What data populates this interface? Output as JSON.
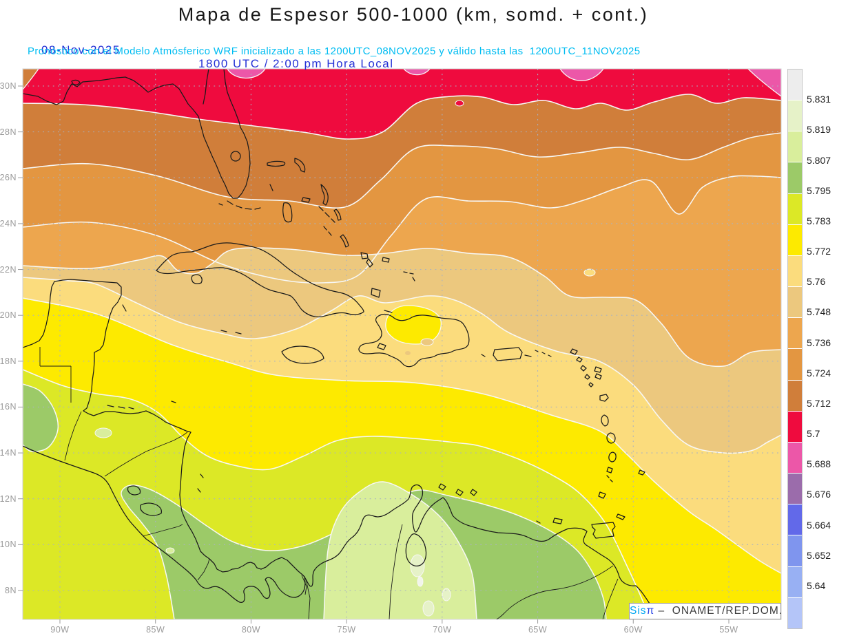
{
  "header": {
    "title": "Mapa de Espesor 500-1000 (km, somd. + cont.)",
    "date": "08-Nov-2025",
    "time": "1800 UTC / 2:00 pm Hora Local",
    "forecast": "Pronóstico con el Modelo Atmósferico WRF inicializado a las 1200UTC_08NOV2025 y válido hasta las  1200UTC_11NOV2025"
  },
  "axes": {
    "lat": [
      "30N",
      "28N",
      "26N",
      "24N",
      "22N",
      "20N",
      "18N",
      "16N",
      "14N",
      "12N",
      "10N",
      "8N"
    ],
    "lon": [
      "90W",
      "85W",
      "80W",
      "75W",
      "70W",
      "65W",
      "60W",
      "55W"
    ]
  },
  "colorbar": {
    "values": [
      "5.831",
      "5.819",
      "5.807",
      "5.795",
      "5.783",
      "5.772",
      "5.76",
      "5.748",
      "5.736",
      "5.724",
      "5.712",
      "5.7",
      "5.688",
      "5.676",
      "5.664",
      "5.652",
      "5.64"
    ],
    "colors": [
      "#ededed",
      "#e6f2c8",
      "#d9ee9c",
      "#9cca68",
      "#dce826",
      "#fdea00",
      "#fbdc7d",
      "#ecc87e",
      "#eda64e",
      "#e39641",
      "#d07e3a",
      "#ef0b3e",
      "#ec57a8",
      "#9b6cab",
      "#6269e9",
      "#7f95ee",
      "#98b0f3",
      "#b4c5f8"
    ]
  },
  "watermark": {
    "brand": "Sis",
    "pi": "π",
    "suffix": " –  ONAMET/REP.DOM."
  },
  "chart_data": {
    "type": "heatmap",
    "subtype": "filled-contour weather map (500-1000 hPa thickness)",
    "title": "Mapa de Espesor 500-1000 (km, somd. + cont.)",
    "region": {
      "lat_range": [
        "8N",
        "30N"
      ],
      "lon_range": [
        "90W",
        "55W"
      ]
    },
    "variable": "Espesor 500-1000 (km)",
    "contour_levels": [
      5.64,
      5.652,
      5.664,
      5.676,
      5.688,
      5.7,
      5.712,
      5.724,
      5.736,
      5.748,
      5.76,
      5.772,
      5.783,
      5.795,
      5.807,
      5.819,
      5.831
    ],
    "legend_position": "right",
    "gridlines": "dotted, every 2 deg lat / 5 deg lon",
    "field_pattern": [
      {
        "band": "5.688-5.700 (pink)",
        "location": "small patches along 30N+ north edge"
      },
      {
        "band": "5.700-5.712 (crimson)",
        "location": "north of ~29N, Gulf coast and Atlantic"
      },
      {
        "band": "5.712-5.736 (dark/mid orange)",
        "location": "~25N-29N incl. Florida"
      },
      {
        "band": "5.736-5.748 (light orange)",
        "location": "~23N-26N, lobe dips SE over Atlantic to ~20N near 58W"
      },
      {
        "band": "5.748-5.760 (tan)",
        "location": "~21N-24N incl. Cuba, sloping SE to 18N in east"
      },
      {
        "band": "5.760-5.772 (cream)",
        "location": "~18N-22N incl. Hispaniola, Jamaica, Puerto Rico"
      },
      {
        "band": "5.772-5.783 (yellow)",
        "location": "~13N-18N central Caribbean; local max over Hispaniola interior"
      },
      {
        "band": "5.783-5.795 (yellow-green)",
        "location": "~10N-14N Central America / southern Caribbean"
      },
      {
        "band": "5.795-5.807 (green)",
        "location": "south of ~11N: Costa Rica, Panama, Colombia, Venezuela"
      },
      {
        "band": "5.807-5.831 (pale greens)",
        "location": "patches over interior Colombia/Venezuela near 7-9N"
      }
    ]
  }
}
